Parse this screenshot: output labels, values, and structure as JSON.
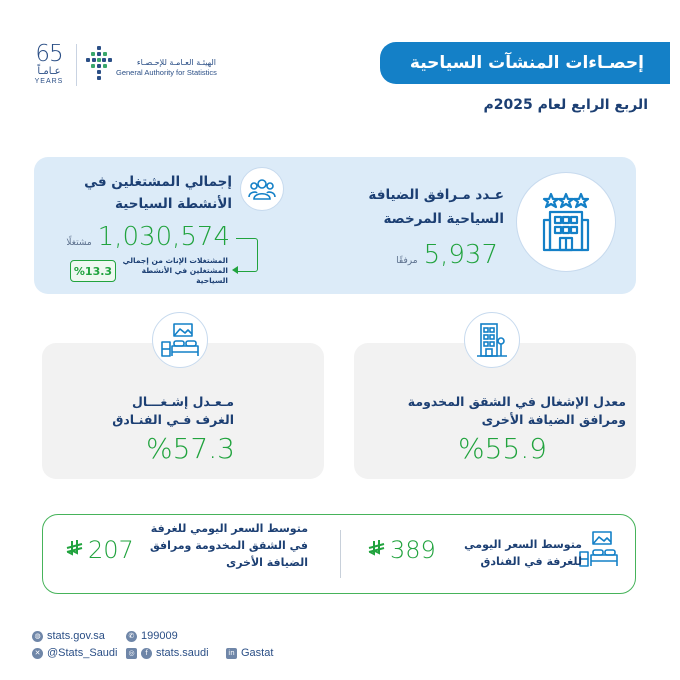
{
  "header": {
    "anniversary": {
      "number": "65",
      "arabic": "عـامـاً",
      "english": "YEARS"
    },
    "org_name_ar": "الهيئـة العـامـة للإحـصـاء",
    "org_name_en": "General Authority for Statistics",
    "title": "إحصـاءات المنشآت السياحية",
    "subtitle": "الربع الرابع لعام 2025م"
  },
  "accommodation": {
    "title_line1": "عـدد مـرافق الضيافة",
    "title_line2": "السياحية المرخصة",
    "value": "5,937",
    "unit": "مرفقًا",
    "icon": "hotel-building-icon"
  },
  "employment": {
    "title_line1": "إجمالي المشتغلين في",
    "title_line2": "الأنشطة السياحية",
    "value": "1,030,574",
    "unit": "مشتغلًا",
    "female_line1": "المشتغلات الإناث من إجمالي",
    "female_line2": "المشتغلين في الأنشطة السياحية",
    "female_pct": "%13.3",
    "icon": "people-group-icon"
  },
  "occupancy": {
    "hotels": {
      "title_line1": "مـعـدل إشـغـــال",
      "title_line2": "الغرف فـي الفنـادق",
      "value": "%57.3",
      "icon": "bedroom-icon"
    },
    "apartments": {
      "title_line1": "معدل الإشغال في الشقق المخدومة",
      "title_line2": "ومرافق الضيافة الأخرى",
      "value": "%55.9",
      "icon": "apartment-building-icon"
    }
  },
  "daily_rate": {
    "hotels": {
      "label_line1": "متوسط السعر اليومي",
      "label_line2": "للغرفة في الفنادق",
      "value": "389"
    },
    "apartments": {
      "label_line1": "متوسط السعر اليومي للغرفة",
      "label_line2": "في الشقق المخدومة ومرافق",
      "label_line3": "الضيافة الأخرى",
      "value": "207"
    },
    "currency_icon": "riyal-symbol-icon"
  },
  "footer": {
    "website": "stats.gov.sa",
    "phone": "199009",
    "twitter": "@Stats_Saudi",
    "social": "stats.saudi",
    "linkedin": "Gastat"
  },
  "colors": {
    "primary_blue": "#1480c7",
    "navy": "#1c3f73",
    "green": "#21a33e",
    "light_blue_card": "#dcebf8",
    "grey_card": "#f2f2f2"
  }
}
